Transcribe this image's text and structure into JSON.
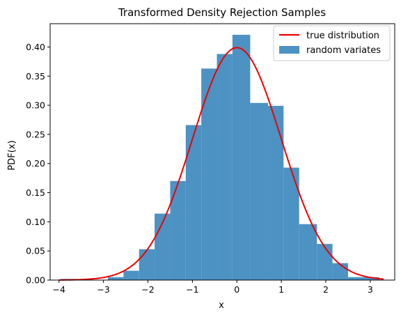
{
  "chart_data": {
    "type": "bar",
    "title": "Transformed Density Rejection Samples",
    "xlabel": "x",
    "ylabel": "PDF(x)",
    "xlim": [
      -4.2,
      3.55
    ],
    "ylim": [
      0,
      0.44
    ],
    "xticks": [
      -4,
      -3,
      -2,
      -1,
      0,
      1,
      2,
      3
    ],
    "yticks": [
      0.0,
      0.05,
      0.1,
      0.15,
      0.2,
      0.25,
      0.3,
      0.35,
      0.4
    ],
    "ytick_labels": [
      "0.00",
      "0.05",
      "0.10",
      "0.15",
      "0.20",
      "0.25",
      "0.30",
      "0.35",
      "0.40"
    ],
    "legend_position": "top-right",
    "grid": false,
    "histogram": {
      "name": "random variates",
      "color": "#4c92c3",
      "bins": [
        {
          "x0": -3.95,
          "x1": -3.6,
          "y": 0.002
        },
        {
          "x0": -3.6,
          "x1": -3.25,
          "y": 0.0
        },
        {
          "x0": -3.25,
          "x1": -2.9,
          "y": 0.0
        },
        {
          "x0": -2.9,
          "x1": -2.55,
          "y": 0.005
        },
        {
          "x0": -2.55,
          "x1": -2.2,
          "y": 0.016
        },
        {
          "x0": -2.2,
          "x1": -1.85,
          "y": 0.053
        },
        {
          "x0": -1.85,
          "x1": -1.5,
          "y": 0.114
        },
        {
          "x0": -1.5,
          "x1": -1.15,
          "y": 0.17
        },
        {
          "x0": -1.15,
          "x1": -0.8,
          "y": 0.266
        },
        {
          "x0": -0.8,
          "x1": -0.45,
          "y": 0.363
        },
        {
          "x0": -0.45,
          "x1": -0.1,
          "y": 0.388
        },
        {
          "x0": -0.1,
          "x1": 0.3,
          "y": 0.421
        },
        {
          "x0": 0.3,
          "x1": 0.7,
          "y": 0.304
        },
        {
          "x0": 0.7,
          "x1": 1.05,
          "y": 0.299
        },
        {
          "x0": 1.05,
          "x1": 1.4,
          "y": 0.193
        },
        {
          "x0": 1.4,
          "x1": 1.8,
          "y": 0.096
        },
        {
          "x0": 1.8,
          "x1": 2.15,
          "y": 0.062
        },
        {
          "x0": 2.15,
          "x1": 2.5,
          "y": 0.029
        },
        {
          "x0": 2.5,
          "x1": 3.2,
          "y": 0.005
        }
      ]
    },
    "curve": {
      "name": "true distribution",
      "color": "#ee0000",
      "x_range": [
        -4.0,
        3.3
      ],
      "function": "standard normal pdf"
    }
  }
}
